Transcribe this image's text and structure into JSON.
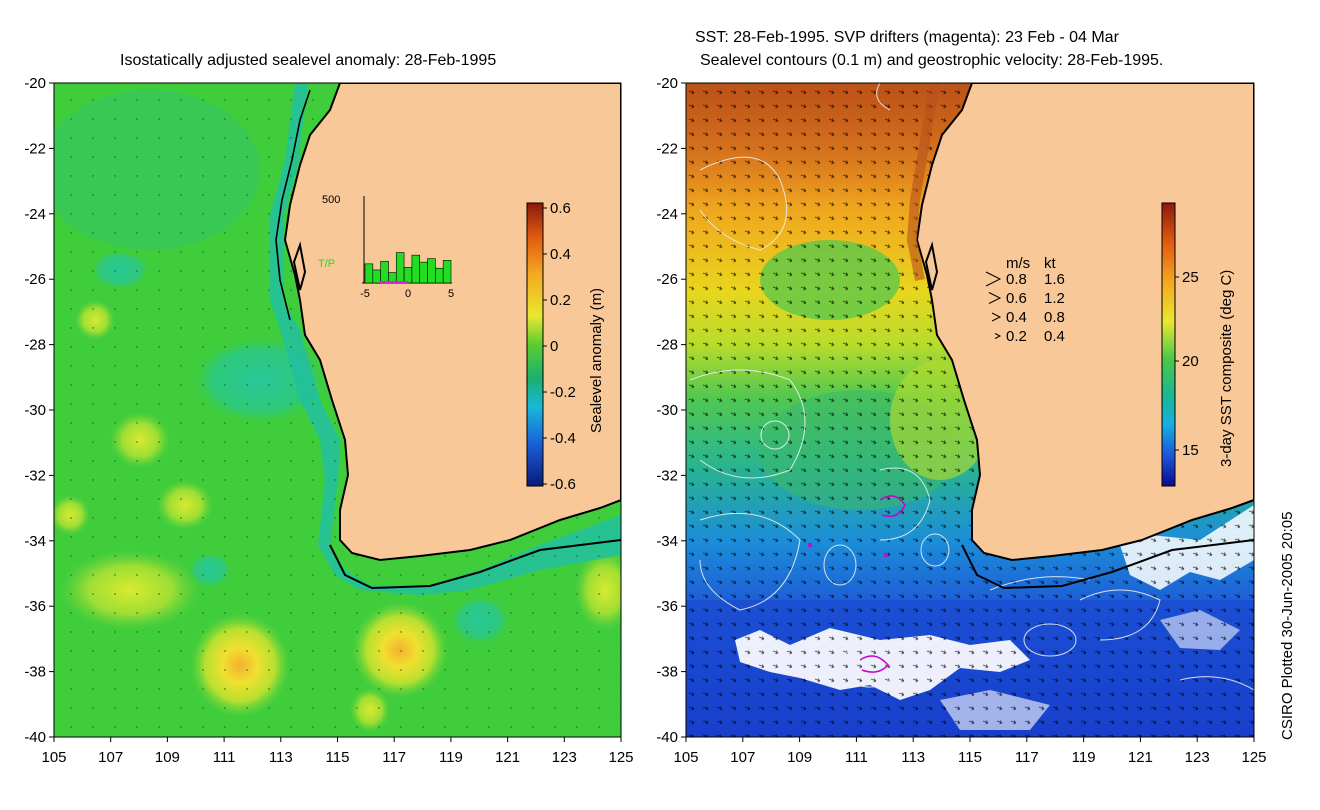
{
  "left_panel": {
    "title": "Isostatically adjusted sealevel anomaly: 28-Feb-1995",
    "colorbar": {
      "label": "Sealevel anomaly (m)",
      "ticks": [
        "0.6",
        "0.4",
        "0.2",
        "0",
        "-0.2",
        "-0.4",
        "-0.6"
      ]
    },
    "inset": {
      "ymax_label": "500",
      "series_label": "T/P",
      "x_ticks": [
        "-5",
        "0",
        "5"
      ],
      "bars": [
        0.22,
        0.15,
        0.25,
        0.12,
        0.35,
        0.18,
        0.32,
        0.24,
        0.28,
        0.17,
        0.26
      ]
    }
  },
  "right_panel": {
    "title_line1": "SST: 28-Feb-1995. SVP drifters (magenta): 23 Feb - 04 Mar",
    "title_line2": "Sealevel contours (0.1 m) and geostrophic velocity: 28-Feb-1995.",
    "colorbar": {
      "label": "3-day SST composite (deg C)",
      "ticks": [
        "25",
        "20",
        "15"
      ]
    },
    "velocity_legend": {
      "header_ms": "m/s",
      "header_kt": "kt",
      "rows": [
        {
          "ms": "0.8",
          "kt": "1.6"
        },
        {
          "ms": "0.6",
          "kt": "1.2"
        },
        {
          "ms": "0.4",
          "kt": "0.8"
        },
        {
          "ms": "0.2",
          "kt": "0.4"
        }
      ]
    }
  },
  "axes": {
    "y_ticks": [
      "-20",
      "-22",
      "-24",
      "-26",
      "-28",
      "-30",
      "-32",
      "-34",
      "-36",
      "-38",
      "-40"
    ],
    "x_ticks": [
      "105",
      "107",
      "109",
      "111",
      "113",
      "115",
      "117",
      "119",
      "121",
      "123",
      "125"
    ]
  },
  "credit": "CSIRO Plotted 30-Jun-2005 20:05",
  "colors": {
    "land": "#f9c899",
    "ocean_left": "#3fcc3a",
    "sst_warm": "#e8781a",
    "sst_cold": "#1b3fd0",
    "drifter": "#c800c8"
  }
}
